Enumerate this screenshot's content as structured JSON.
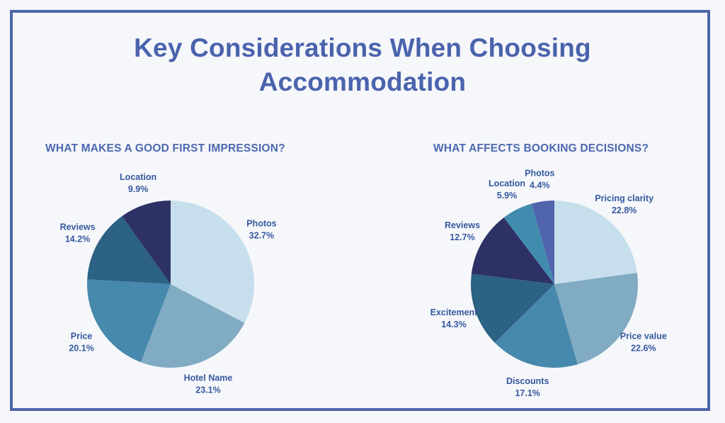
{
  "page": {
    "background": "#F6F7FA",
    "frame_border_color": "#4F64A9",
    "title_lines": [
      "Key Considerations When Choosing",
      "Accommodation"
    ],
    "title_color": "#4A63AD",
    "heading_color": "#4C68B0",
    "label_color": "#35599F"
  },
  "chart_data": [
    {
      "type": "pie",
      "title": "WHAT MAKES A GOOD FIRST IMPRESSION?",
      "categories": [
        "Photos",
        "Hotel Name",
        "Price",
        "Reviews",
        "Location"
      ],
      "values": [
        32.7,
        23.1,
        20.1,
        14.2,
        9.9
      ],
      "value_suffix": "%",
      "colors": [
        "#C7DFEC",
        "#81ABC3",
        "#4789AC",
        "#2C6284",
        "#2D3166"
      ],
      "start_angle_deg": 0,
      "direction": "clockwise",
      "legend": "none",
      "labels_position": "outside"
    },
    {
      "type": "pie",
      "title": "WHAT AFFECTS BOOKING DECISIONS?",
      "categories": [
        "Pricing clarity",
        "Price value",
        "Discounts",
        "Excitement",
        "Reviews",
        "Location",
        "Photos"
      ],
      "values": [
        22.8,
        22.6,
        17.1,
        14.3,
        12.7,
        5.9,
        4.4
      ],
      "value_suffix": "%",
      "colors": [
        "#C7DFEC",
        "#81ABC3",
        "#4789AC",
        "#2C6284",
        "#2D3166",
        "#418CAE",
        "#5065AE"
      ],
      "start_angle_deg": 0,
      "direction": "clockwise",
      "legend": "none",
      "labels_position": "outside"
    }
  ]
}
